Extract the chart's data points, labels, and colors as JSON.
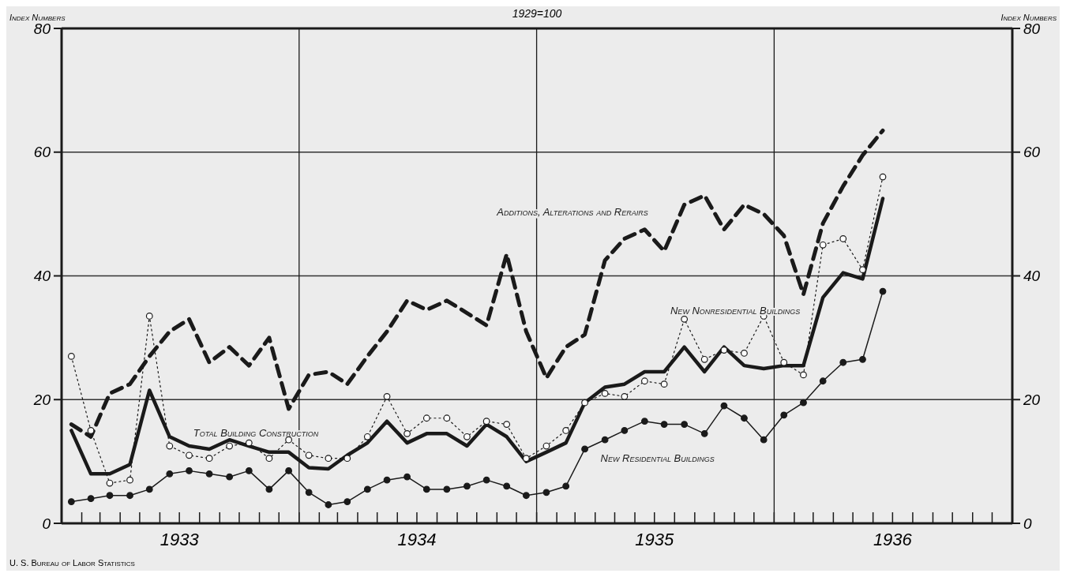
{
  "chart_data": {
    "type": "line",
    "subtitle": "1929=100",
    "ylabel": "Index Numbers",
    "y2label": "Index Numbers",
    "x": [
      "1933-01-16",
      "1933-02-15",
      "1933-03-16",
      "1933-04-16",
      "1933-05-16",
      "1933-06-16",
      "1933-07-16",
      "1933-08-16",
      "1933-09-16",
      "1933-10-16",
      "1933-11-16",
      "1933-12-16",
      "1934-01-16",
      "1934-02-15",
      "1934-03-16",
      "1934-04-16",
      "1934-05-16",
      "1934-06-16",
      "1934-07-16",
      "1934-08-16",
      "1934-09-16",
      "1934-10-16",
      "1934-11-16",
      "1934-12-16",
      "1935-01-16",
      "1935-02-15",
      "1935-03-16",
      "1935-04-16",
      "1935-05-16",
      "1935-06-16",
      "1935-07-16",
      "1935-08-16",
      "1935-09-16",
      "1935-10-16",
      "1935-11-16",
      "1935-12-16",
      "1936-01-16",
      "1936-02-15",
      "1936-03-16",
      "1936-04-16",
      "1936-05-16",
      "1936-06-16"
    ],
    "series": [
      {
        "name": "Additions, Alterations and Rerairs",
        "color": "#1a1a1a",
        "line_style": "dashed",
        "marker": "none",
        "values": [
          16,
          14,
          21,
          22.5,
          27,
          31,
          33,
          26,
          28.5,
          25.5,
          30,
          18.5,
          24,
          24.5,
          22.5,
          27,
          31,
          36,
          34.5,
          36,
          34,
          32,
          43.5,
          31,
          23.5,
          28.5,
          30.5,
          42.5,
          46,
          47.5,
          44,
          51.5,
          53,
          47.5,
          51.5,
          50,
          46.5,
          37,
          48.5,
          54.5,
          59.5,
          63.5
        ]
      },
      {
        "name": "New Nonresidential Buildings",
        "color": "#1a1a1a",
        "line_style": "dotted",
        "marker": "circle",
        "values": [
          27,
          15,
          6.5,
          7,
          33.5,
          12.5,
          11,
          10.5,
          12.5,
          13,
          10.5,
          13.5,
          11,
          10.5,
          10.5,
          14,
          20.5,
          14.5,
          17,
          17,
          14,
          16.5,
          16,
          10.5,
          12.5,
          15,
          19.5,
          21,
          20.5,
          23,
          22.5,
          33,
          26.5,
          28,
          27.5,
          33.5,
          26,
          24,
          45,
          46,
          41,
          56
        ]
      },
      {
        "name": "Total Building Construction",
        "color": "#1a1a1a",
        "line_style": "solid",
        "marker": "none",
        "values": [
          15,
          8,
          8,
          9.5,
          21.5,
          14,
          12.5,
          12,
          13.5,
          12.5,
          11.5,
          11.5,
          9,
          8.8,
          11,
          13,
          16.5,
          13,
          14.5,
          14.5,
          12.5,
          16,
          14,
          10,
          11.5,
          13,
          19.5,
          22,
          22.5,
          24.5,
          24.5,
          28.5,
          24.5,
          28.5,
          25.5,
          25,
          25.5,
          25.5,
          36.5,
          40.5,
          39.5,
          52.5
        ]
      },
      {
        "name": "New Residential Buildings",
        "color": "#1a1a1a",
        "line_style": "solid",
        "marker": "circle",
        "values": [
          3.5,
          4,
          4.5,
          4.5,
          5.5,
          8,
          8.5,
          8,
          7.5,
          8.5,
          5.5,
          8.5,
          5,
          3,
          3.5,
          5.5,
          7,
          7.5,
          5.5,
          5.5,
          6,
          7,
          6,
          4.5,
          5,
          6,
          12,
          13.5,
          15,
          16.5,
          16,
          16,
          14.5,
          19,
          17,
          13.5,
          17.5,
          19.5,
          23,
          26,
          26.5,
          37.5
        ]
      }
    ],
    "xlim": [
      "1933-01",
      "1937-01"
    ],
    "xticks": [
      {
        "value": "1933-02",
        "label": null
      },
      {
        "value": "1933-03",
        "label": null
      },
      {
        "value": "1933-04",
        "label": null
      },
      {
        "value": "1933-05",
        "label": null
      },
      {
        "value": "1933-06",
        "label": null
      },
      {
        "value": "1933-07",
        "label": "1933"
      },
      {
        "value": "1933-08",
        "label": null
      },
      {
        "value": "1933-09",
        "label": null
      },
      {
        "value": "1933-10",
        "label": null
      },
      {
        "value": "1933-11",
        "label": null
      },
      {
        "value": "1933-12",
        "label": null
      },
      {
        "value": "1934-01",
        "label": null
      },
      {
        "value": "1934-02",
        "label": null
      },
      {
        "value": "1934-03",
        "label": null
      },
      {
        "value": "1934-04",
        "label": null
      },
      {
        "value": "1934-05",
        "label": null
      },
      {
        "value": "1934-06",
        "label": null
      },
      {
        "value": "1934-07",
        "label": "1934"
      },
      {
        "value": "1934-08",
        "label": null
      },
      {
        "value": "1934-09",
        "label": null
      },
      {
        "value": "1934-10",
        "label": null
      },
      {
        "value": "1934-11",
        "label": null
      },
      {
        "value": "1934-12",
        "label": null
      },
      {
        "value": "1935-01",
        "label": null
      },
      {
        "value": "1935-02",
        "label": null
      },
      {
        "value": "1935-03",
        "label": null
      },
      {
        "value": "1935-04",
        "label": null
      },
      {
        "value": "1935-05",
        "label": null
      },
      {
        "value": "1935-06",
        "label": null
      },
      {
        "value": "1935-07",
        "label": "1935"
      },
      {
        "value": "1935-08",
        "label": null
      },
      {
        "value": "1935-09",
        "label": null
      },
      {
        "value": "1935-10",
        "label": null
      },
      {
        "value": "1935-11",
        "label": null
      },
      {
        "value": "1935-12",
        "label": null
      },
      {
        "value": "1936-01",
        "label": null
      },
      {
        "value": "1936-02",
        "label": null
      },
      {
        "value": "1936-03",
        "label": null
      },
      {
        "value": "1936-04",
        "label": null
      },
      {
        "value": "1936-05",
        "label": null
      },
      {
        "value": "1936-06",
        "label": null
      },
      {
        "value": "1936-07",
        "label": "1936"
      },
      {
        "value": "1936-08",
        "label": null
      },
      {
        "value": "1936-09",
        "label": null
      },
      {
        "value": "1936-10",
        "label": null
      },
      {
        "value": "1936-11",
        "label": null
      },
      {
        "value": "1936-12",
        "label": null
      }
    ],
    "ylim": [
      0,
      80
    ],
    "yticks": [
      0,
      20,
      40,
      60,
      80
    ],
    "y2lim": [
      0,
      80
    ],
    "y2ticks": [
      0,
      20,
      40,
      60,
      80
    ],
    "grid": "y",
    "ref_lines": [
      {
        "axis": "x",
        "value": "1934-01",
        "color": "#1a1a1a"
      },
      {
        "axis": "x",
        "value": "1935-01",
        "color": "#1a1a1a"
      },
      {
        "axis": "x",
        "value": "1936-01",
        "color": "#1a1a1a"
      }
    ],
    "annotations": [
      "U. S. Bureau of Labor Statistics"
    ]
  }
}
